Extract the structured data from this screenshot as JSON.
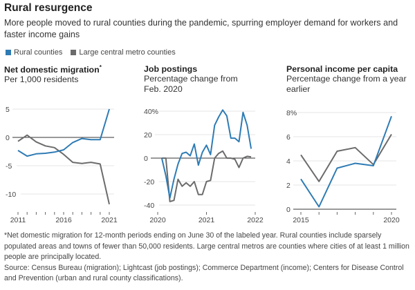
{
  "header": {
    "title": "Rural resurgence",
    "subtitle": "More people moved to rural counties during the pandemic, spurring employer demand for workers and faster income gains"
  },
  "legend": [
    {
      "label": "Rural counties",
      "color": "#2e7bb4"
    },
    {
      "label": "Large central metro counties",
      "color": "#6b6b6b"
    }
  ],
  "chart_data": [
    {
      "type": "line",
      "title": "Net domestic migration",
      "title_mark": "*",
      "subtitle": "Per 1,000 residents",
      "x": [
        2011,
        2012,
        2013,
        2014,
        2015,
        2016,
        2017,
        2018,
        2019,
        2020,
        2021
      ],
      "xticks": [
        2011,
        2012,
        2013,
        2014,
        2015,
        2016,
        2017,
        2018,
        2019,
        2020,
        2021
      ],
      "xtick_labels": [
        {
          "value": 2011,
          "label": "2011"
        },
        {
          "value": 2016,
          "label": "2016"
        },
        {
          "value": 2021,
          "label": "2021"
        }
      ],
      "yticks": [
        {
          "value": 5,
          "label": "5"
        },
        {
          "value": 0,
          "label": "0"
        },
        {
          "value": -5,
          "label": "-5"
        },
        {
          "value": -10,
          "label": "-10"
        }
      ],
      "ylim": [
        -12,
        5
      ],
      "series": [
        {
          "name": "Rural counties",
          "color": "#2e7bb4",
          "values": [
            -2.3,
            -3.3,
            -2.9,
            -2.8,
            -2.6,
            -2.2,
            -0.9,
            -0.2,
            -0.4,
            -0.4,
            5.0
          ]
        },
        {
          "name": "Large central metro counties",
          "color": "#6b6b6b",
          "values": [
            -0.7,
            0.4,
            -0.8,
            -1.5,
            -1.8,
            -3.0,
            -4.4,
            -4.6,
            -4.4,
            -4.7,
            -11.8
          ]
        }
      ]
    },
    {
      "type": "line",
      "title": "Job postings",
      "subtitle": "Percentage change from Feb. 2020",
      "x": [
        "2020-02",
        "2020-03",
        "2020-04",
        "2020-05",
        "2020-06",
        "2020-07",
        "2020-08",
        "2020-09",
        "2020-10",
        "2020-11",
        "2020-12",
        "2021-01",
        "2021-02",
        "2021-03",
        "2021-04",
        "2021-05",
        "2021-06",
        "2021-07",
        "2021-08",
        "2021-09",
        "2021-10",
        "2021-11",
        "2021-12"
      ],
      "xtick_labels": [
        {
          "value": 0,
          "label": "2020"
        },
        {
          "value": 12,
          "label": "2021"
        },
        {
          "value": 24,
          "label": "2022"
        }
      ],
      "yticks": [
        {
          "value": 40,
          "label": "40%"
        },
        {
          "value": 20,
          "label": "20"
        },
        {
          "value": 0,
          "label": "0"
        },
        {
          "value": -20,
          "label": "-20"
        },
        {
          "value": -40,
          "label": "-40"
        }
      ],
      "ylim": [
        -42,
        42
      ],
      "series": [
        {
          "name": "Rural counties",
          "color": "#2e7bb4",
          "values": [
            0,
            -15,
            -34,
            -18,
            -5,
            4,
            5,
            2,
            12,
            -6,
            5,
            11,
            3,
            28,
            35,
            41,
            36,
            17,
            17,
            14,
            39,
            28,
            8
          ]
        },
        {
          "name": "Large central metro counties",
          "color": "#6b6b6b",
          "values": [
            0,
            0,
            -37,
            -36,
            -18,
            -24,
            -21,
            -24,
            -20,
            -31,
            -31,
            -20,
            -19,
            0,
            4,
            6,
            0,
            0,
            -1,
            -8,
            0,
            1.5,
            1
          ]
        }
      ]
    },
    {
      "type": "line",
      "title": "Personal income per capita",
      "subtitle": "Percentage change from a year earlier",
      "x": [
        2015,
        2016,
        2017,
        2018,
        2019,
        2020
      ],
      "xticks": [
        2015,
        2016,
        2017,
        2018,
        2019,
        2020
      ],
      "xtick_labels": [
        {
          "value": 2015,
          "label": "2015"
        },
        {
          "value": 2020,
          "label": "2020"
        }
      ],
      "yticks": [
        {
          "value": 8,
          "label": "8%"
        },
        {
          "value": 6,
          "label": "6"
        },
        {
          "value": 4,
          "label": "4"
        },
        {
          "value": 2,
          "label": "2"
        },
        {
          "value": 0,
          "label": "0"
        }
      ],
      "ylim": [
        0,
        8
      ],
      "series": [
        {
          "name": "Rural counties",
          "color": "#2e7bb4",
          "values": [
            2.5,
            0.2,
            3.4,
            3.8,
            3.6,
            7.7
          ]
        },
        {
          "name": "Large central metro counties",
          "color": "#6b6b6b",
          "values": [
            4.5,
            2.3,
            4.8,
            5.1,
            3.7,
            6.2
          ]
        }
      ]
    }
  ],
  "footnote": {
    "note": "*Net domestic migration for 12-month periods ending on June 30 of the labeled year. Rural counties include sparsely populated areas and towns of fewer than 50,000 residents. Large central metros are counties where cities of at least 1 million people are principally located.",
    "source": "Source: Census Bureau (migration); Lightcast (job postings); Commerce Department (income);  Centers for Disease Control and Prevention (urban and rural county classifications)."
  }
}
